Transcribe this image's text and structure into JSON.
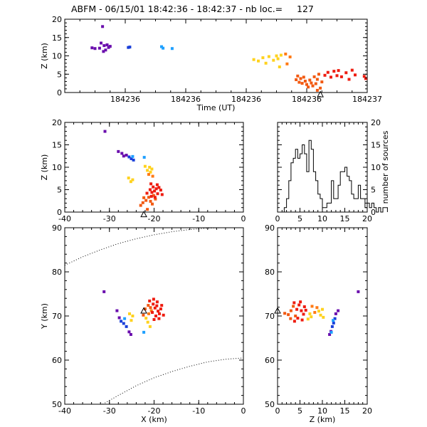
{
  "title": "ABFM - 06/15/01 18:42:36 - 18:42:37 - nb loc.=     127",
  "colors": {
    "violet": "#6a0dad",
    "blue": "#1a3fd9",
    "lightblue": "#1ea0ff",
    "yellow": "#ffd21e",
    "orange": "#ff7a14",
    "darkorange": "#f25a12",
    "red": "#ee1c10"
  },
  "chart_data": [
    {
      "type": "scatter",
      "panel": "time-height",
      "xlabel": "Time (UT)",
      "ylabel": "Z (km)",
      "xlim": [
        0,
        1
      ],
      "ylim": [
        0,
        20
      ],
      "xtick_values": [
        0.2,
        0.4,
        0.6,
        0.8,
        1.0
      ],
      "xtick_labels": [
        "184236",
        "184236",
        "184236",
        "184236",
        "184237"
      ],
      "yticks": [
        0,
        5,
        10,
        15,
        20
      ],
      "grid": false,
      "points": [
        {
          "x": 0.125,
          "y": 18,
          "c": "violet"
        },
        {
          "x": 0.09,
          "y": 12.2,
          "c": "violet"
        },
        {
          "x": 0.1,
          "y": 12,
          "c": "violet"
        },
        {
          "x": 0.115,
          "y": 12.1,
          "c": "violet"
        },
        {
          "x": 0.12,
          "y": 13.5,
          "c": "violet"
        },
        {
          "x": 0.13,
          "y": 12.8,
          "c": "violet"
        },
        {
          "x": 0.135,
          "y": 11.6,
          "c": "violet"
        },
        {
          "x": 0.14,
          "y": 13,
          "c": "violet"
        },
        {
          "x": 0.145,
          "y": 12.3,
          "c": "violet"
        },
        {
          "x": 0.15,
          "y": 12.6,
          "c": "violet"
        },
        {
          "x": 0.128,
          "y": 11.2,
          "c": "violet"
        },
        {
          "x": 0.21,
          "y": 12.3,
          "c": "blue"
        },
        {
          "x": 0.215,
          "y": 12.4,
          "c": "blue"
        },
        {
          "x": 0.32,
          "y": 12.5,
          "c": "lightblue"
        },
        {
          "x": 0.325,
          "y": 12.1,
          "c": "lightblue"
        },
        {
          "x": 0.355,
          "y": 12,
          "c": "lightblue"
        },
        {
          "x": 0.625,
          "y": 9,
          "c": "yellow"
        },
        {
          "x": 0.64,
          "y": 8.6,
          "c": "yellow"
        },
        {
          "x": 0.655,
          "y": 9.5,
          "c": "yellow"
        },
        {
          "x": 0.665,
          "y": 8,
          "c": "yellow"
        },
        {
          "x": 0.675,
          "y": 9.8,
          "c": "yellow"
        },
        {
          "x": 0.69,
          "y": 8.8,
          "c": "yellow"
        },
        {
          "x": 0.7,
          "y": 10,
          "c": "yellow"
        },
        {
          "x": 0.705,
          "y": 9.2,
          "c": "yellow"
        },
        {
          "x": 0.71,
          "y": 7,
          "c": "yellow"
        },
        {
          "x": 0.715,
          "y": 10.2,
          "c": "yellow"
        },
        {
          "x": 0.73,
          "y": 10.5,
          "c": "orange"
        },
        {
          "x": 0.745,
          "y": 9.7,
          "c": "orange"
        },
        {
          "x": 0.735,
          "y": 7.8,
          "c": "orange"
        },
        {
          "x": 0.765,
          "y": 3.5,
          "c": "darkorange"
        },
        {
          "x": 0.77,
          "y": 4.5,
          "c": "darkorange"
        },
        {
          "x": 0.775,
          "y": 2.8,
          "c": "darkorange"
        },
        {
          "x": 0.78,
          "y": 3.8,
          "c": "darkorange"
        },
        {
          "x": 0.785,
          "y": 2.5,
          "c": "darkorange"
        },
        {
          "x": 0.79,
          "y": 4.2,
          "c": "darkorange"
        },
        {
          "x": 0.795,
          "y": 3.1,
          "c": "darkorange"
        },
        {
          "x": 0.8,
          "y": 2.2,
          "c": "darkorange"
        },
        {
          "x": 0.805,
          "y": 1.5,
          "c": "darkorange"
        },
        {
          "x": 0.81,
          "y": 3.4,
          "c": "darkorange"
        },
        {
          "x": 0.815,
          "y": 2.6,
          "c": "darkorange"
        },
        {
          "x": 0.82,
          "y": 1.8,
          "c": "darkorange"
        },
        {
          "x": 0.825,
          "y": 4.3,
          "c": "darkorange"
        },
        {
          "x": 0.83,
          "y": 2.4,
          "c": "darkorange"
        },
        {
          "x": 0.835,
          "y": 3.6,
          "c": "darkorange"
        },
        {
          "x": 0.84,
          "y": 5,
          "c": "darkorange"
        },
        {
          "x": 0.845,
          "y": 1.2,
          "c": "darkorange"
        },
        {
          "x": 0.85,
          "y": 2.9,
          "c": "darkorange"
        },
        {
          "x": 0.835,
          "y": 0.6,
          "c": "darkorange"
        },
        {
          "x": 0.86,
          "y": 4.7,
          "c": "red"
        },
        {
          "x": 0.87,
          "y": 5.5,
          "c": "red"
        },
        {
          "x": 0.88,
          "y": 4.2,
          "c": "red"
        },
        {
          "x": 0.89,
          "y": 5.8,
          "c": "red"
        },
        {
          "x": 0.9,
          "y": 4.6,
          "c": "red"
        },
        {
          "x": 0.905,
          "y": 6,
          "c": "red"
        },
        {
          "x": 0.915,
          "y": 4.3,
          "c": "red"
        },
        {
          "x": 0.93,
          "y": 5.4,
          "c": "red"
        },
        {
          "x": 0.94,
          "y": 3.6,
          "c": "red"
        },
        {
          "x": 0.95,
          "y": 6.1,
          "c": "red"
        },
        {
          "x": 0.96,
          "y": 4.8,
          "c": "red"
        },
        {
          "x": 0.99,
          "y": 4.4,
          "c": "red"
        },
        {
          "x": 0.995,
          "y": 3.8,
          "c": "red"
        }
      ],
      "marker": {
        "x": 0.845,
        "y": -0.5
      }
    },
    {
      "type": "scatter",
      "panel": "x-height",
      "ylabel": "Z (km)",
      "xlim": [
        -40,
        0
      ],
      "ylim": [
        0,
        20
      ],
      "xticks": [
        -40,
        -30,
        -20,
        -10,
        0
      ],
      "yticks": [
        0,
        5,
        10,
        15,
        20
      ],
      "grid": false,
      "points": [
        {
          "x": -31,
          "y": 18,
          "c": "violet"
        },
        {
          "x": -28,
          "y": 13.5,
          "c": "violet"
        },
        {
          "x": -27.2,
          "y": 13.1,
          "c": "violet"
        },
        {
          "x": -26.8,
          "y": 12.5,
          "c": "violet"
        },
        {
          "x": -26.2,
          "y": 12.7,
          "c": "violet"
        },
        {
          "x": -25.6,
          "y": 12.3,
          "c": "blue"
        },
        {
          "x": -25.1,
          "y": 11.9,
          "c": "blue"
        },
        {
          "x": -24.6,
          "y": 11.6,
          "c": "blue"
        },
        {
          "x": -24.8,
          "y": 12.4,
          "c": "lightblue"
        },
        {
          "x": -22.2,
          "y": 12.2,
          "c": "lightblue"
        },
        {
          "x": -25.7,
          "y": 7.6,
          "c": "yellow"
        },
        {
          "x": -25.2,
          "y": 6.8,
          "c": "yellow"
        },
        {
          "x": -24.8,
          "y": 7.2,
          "c": "yellow"
        },
        {
          "x": -22,
          "y": 10.2,
          "c": "yellow"
        },
        {
          "x": -21.5,
          "y": 9.3,
          "c": "yellow"
        },
        {
          "x": -21,
          "y": 10,
          "c": "yellow"
        },
        {
          "x": -20.8,
          "y": 8.9,
          "c": "yellow"
        },
        {
          "x": -20.5,
          "y": 9.6,
          "c": "yellow"
        },
        {
          "x": -21.2,
          "y": 8.4,
          "c": "orange"
        },
        {
          "x": -20.3,
          "y": 8,
          "c": "orange"
        },
        {
          "x": -23,
          "y": 1.5,
          "c": "darkorange"
        },
        {
          "x": -22.5,
          "y": 2.1,
          "c": "darkorange"
        },
        {
          "x": -21.8,
          "y": 2.6,
          "c": "darkorange"
        },
        {
          "x": -21.2,
          "y": 3.3,
          "c": "darkorange"
        },
        {
          "x": -20.8,
          "y": 2.4,
          "c": "darkorange"
        },
        {
          "x": -20.4,
          "y": 1.8,
          "c": "darkorange"
        },
        {
          "x": -20.1,
          "y": 3.7,
          "c": "darkorange"
        },
        {
          "x": -19.7,
          "y": 2.9,
          "c": "darkorange"
        },
        {
          "x": -21.5,
          "y": 0.6,
          "c": "darkorange"
        },
        {
          "x": -22.3,
          "y": 3.2,
          "c": "darkorange"
        },
        {
          "x": -21.6,
          "y": 4.2,
          "c": "red"
        },
        {
          "x": -20.9,
          "y": 5,
          "c": "red"
        },
        {
          "x": -20.5,
          "y": 4.4,
          "c": "red"
        },
        {
          "x": -20.2,
          "y": 5.6,
          "c": "red"
        },
        {
          "x": -19.9,
          "y": 4.7,
          "c": "red"
        },
        {
          "x": -19.5,
          "y": 5.2,
          "c": "red"
        },
        {
          "x": -19.2,
          "y": 4.1,
          "c": "red"
        },
        {
          "x": -18.9,
          "y": 5.5,
          "c": "red"
        },
        {
          "x": -18.5,
          "y": 4.9,
          "c": "red"
        },
        {
          "x": -18.2,
          "y": 3.9,
          "c": "red"
        },
        {
          "x": -19.8,
          "y": 3.3,
          "c": "red"
        },
        {
          "x": -20.6,
          "y": 3.5,
          "c": "red"
        },
        {
          "x": -20.7,
          "y": 6.3,
          "c": "red"
        },
        {
          "x": -19.3,
          "y": 6.1,
          "c": "red"
        }
      ],
      "marker": {
        "x": -22.3,
        "y": -0.5
      }
    },
    {
      "type": "bar",
      "panel": "histogram",
      "y2label": "number of sources",
      "xlim": [
        0,
        20
      ],
      "ylim": [
        0,
        20
      ],
      "xticks": [
        0,
        5,
        10,
        15,
        20
      ],
      "yticks": [
        0,
        5,
        10,
        15,
        20
      ],
      "bin_width": 0.5,
      "bin_start": 1.5,
      "values": [
        1,
        3,
        7,
        11,
        12,
        14,
        12,
        13,
        15,
        13,
        9,
        16,
        14,
        9,
        7,
        4,
        3,
        1,
        1,
        2,
        2,
        7,
        3,
        3,
        6,
        9,
        9,
        10,
        8,
        7,
        4,
        3,
        3,
        6,
        3,
        3,
        1,
        2,
        1,
        2,
        1,
        0,
        1,
        0,
        1,
        1
      ]
    },
    {
      "type": "scatter",
      "panel": "plan-view",
      "xlabel": "X (km)",
      "ylabel": "Y (km)",
      "xlim": [
        -40,
        0
      ],
      "ylim": [
        50,
        90
      ],
      "xticks": [
        -40,
        -30,
        -20,
        -10,
        0
      ],
      "yticks": [
        50,
        60,
        70,
        80,
        90
      ],
      "grid": false,
      "points": [
        {
          "x": -31.2,
          "y": 75.5,
          "c": "violet"
        },
        {
          "x": -28.3,
          "y": 71.2,
          "c": "violet"
        },
        {
          "x": -27.8,
          "y": 69.6,
          "c": "violet"
        },
        {
          "x": -27.4,
          "y": 68.8,
          "c": "blue"
        },
        {
          "x": -26.8,
          "y": 68.3,
          "c": "blue"
        },
        {
          "x": -26.2,
          "y": 67.6,
          "c": "blue"
        },
        {
          "x": -25.6,
          "y": 66.4,
          "c": "violet"
        },
        {
          "x": -25.2,
          "y": 65.8,
          "c": "violet"
        },
        {
          "x": -26.6,
          "y": 69.4,
          "c": "lightblue"
        },
        {
          "x": -22.3,
          "y": 66.3,
          "c": "lightblue"
        },
        {
          "x": -25.5,
          "y": 70.5,
          "c": "yellow"
        },
        {
          "x": -25.1,
          "y": 69,
          "c": "yellow"
        },
        {
          "x": -24.8,
          "y": 70,
          "c": "yellow"
        },
        {
          "x": -21.4,
          "y": 68.6,
          "c": "yellow"
        },
        {
          "x": -21.8,
          "y": 69.5,
          "c": "yellow"
        },
        {
          "x": -20.9,
          "y": 67.6,
          "c": "yellow"
        },
        {
          "x": -21.2,
          "y": 70.5,
          "c": "orange"
        },
        {
          "x": -20.6,
          "y": 71.2,
          "c": "orange"
        },
        {
          "x": -22,
          "y": 71.6,
          "c": "darkorange"
        },
        {
          "x": -21.3,
          "y": 72.4,
          "c": "darkorange"
        },
        {
          "x": -20.8,
          "y": 71.9,
          "c": "darkorange"
        },
        {
          "x": -22.4,
          "y": 70.2,
          "c": "darkorange"
        },
        {
          "x": -20.2,
          "y": 72.7,
          "c": "red"
        },
        {
          "x": -19.8,
          "y": 71.8,
          "c": "red"
        },
        {
          "x": -19.4,
          "y": 72.3,
          "c": "red"
        },
        {
          "x": -19.1,
          "y": 71.1,
          "c": "red"
        },
        {
          "x": -18.8,
          "y": 70.5,
          "c": "red"
        },
        {
          "x": -18.5,
          "y": 71.6,
          "c": "red"
        },
        {
          "x": -20.4,
          "y": 70.8,
          "c": "red"
        },
        {
          "x": -19.6,
          "y": 70,
          "c": "red"
        },
        {
          "x": -18.9,
          "y": 69.4,
          "c": "red"
        },
        {
          "x": -20,
          "y": 69.2,
          "c": "red"
        },
        {
          "x": -19.3,
          "y": 73.2,
          "c": "red"
        },
        {
          "x": -18.3,
          "y": 72.4,
          "c": "red"
        },
        {
          "x": -17.9,
          "y": 70.2,
          "c": "red"
        },
        {
          "x": -21,
          "y": 73.4,
          "c": "red"
        },
        {
          "x": -20.1,
          "y": 73.8,
          "c": "red"
        }
      ],
      "marker": {
        "x": -22.3,
        "y": 71.2
      },
      "dotted_curves": [
        [
          [
            -40,
            81.5
          ],
          [
            -36,
            83.4
          ],
          [
            -32,
            85
          ],
          [
            -28,
            86.4
          ],
          [
            -24,
            87.5
          ],
          [
            -20,
            88.4
          ],
          [
            -16,
            89.1
          ],
          [
            -12,
            89.6
          ],
          [
            -8,
            89.9
          ],
          [
            -5,
            90
          ]
        ],
        [
          [
            -31.5,
            50
          ],
          [
            -28,
            52
          ],
          [
            -24,
            54.2
          ],
          [
            -20,
            56
          ],
          [
            -16,
            57.4
          ],
          [
            -12,
            58.6
          ],
          [
            -8,
            59.6
          ],
          [
            -4,
            60.2
          ],
          [
            0,
            60.5
          ]
        ]
      ]
    },
    {
      "type": "scatter",
      "panel": "z-plan",
      "xlabel": "Z (km)",
      "xlim": [
        0,
        20
      ],
      "ylim": [
        50,
        90
      ],
      "xticks": [
        0,
        5,
        10,
        15,
        20
      ],
      "yticks": [
        50,
        60,
        70,
        80,
        90
      ],
      "grid": false,
      "points": [
        {
          "x": 18,
          "y": 75.5,
          "c": "violet"
        },
        {
          "x": 13.5,
          "y": 71.2,
          "c": "violet"
        },
        {
          "x": 13,
          "y": 70.5,
          "c": "violet"
        },
        {
          "x": 12.8,
          "y": 69.4,
          "c": "blue"
        },
        {
          "x": 12.5,
          "y": 68.4,
          "c": "blue"
        },
        {
          "x": 12.2,
          "y": 67.6,
          "c": "blue"
        },
        {
          "x": 11.9,
          "y": 66.5,
          "c": "violet"
        },
        {
          "x": 11.6,
          "y": 65.8,
          "c": "violet"
        },
        {
          "x": 12,
          "y": 66.3,
          "c": "lightblue"
        },
        {
          "x": 12.4,
          "y": 69,
          "c": "lightblue"
        },
        {
          "x": 7.2,
          "y": 70.5,
          "c": "yellow"
        },
        {
          "x": 6.8,
          "y": 69.3,
          "c": "yellow"
        },
        {
          "x": 7.5,
          "y": 69.8,
          "c": "yellow"
        },
        {
          "x": 9.2,
          "y": 71.1,
          "c": "yellow"
        },
        {
          "x": 9.6,
          "y": 70.2,
          "c": "yellow"
        },
        {
          "x": 10,
          "y": 71.5,
          "c": "yellow"
        },
        {
          "x": 10.2,
          "y": 69.7,
          "c": "yellow"
        },
        {
          "x": 8.3,
          "y": 70.8,
          "c": "orange"
        },
        {
          "x": 8.8,
          "y": 71.9,
          "c": "orange"
        },
        {
          "x": 7.7,
          "y": 72.2,
          "c": "orange"
        },
        {
          "x": 3,
          "y": 71.2,
          "c": "darkorange"
        },
        {
          "x": 3.5,
          "y": 72.2,
          "c": "darkorange"
        },
        {
          "x": 2.4,
          "y": 70.3,
          "c": "darkorange"
        },
        {
          "x": 1.6,
          "y": 70.6,
          "c": "darkorange"
        },
        {
          "x": 4,
          "y": 70,
          "c": "darkorange"
        },
        {
          "x": 2.9,
          "y": 69.4,
          "c": "darkorange"
        },
        {
          "x": 4.3,
          "y": 71.5,
          "c": "red"
        },
        {
          "x": 4.8,
          "y": 72.5,
          "c": "red"
        },
        {
          "x": 5.3,
          "y": 71.2,
          "c": "red"
        },
        {
          "x": 5.8,
          "y": 70.4,
          "c": "red"
        },
        {
          "x": 4.5,
          "y": 69.5,
          "c": "red"
        },
        {
          "x": 5.1,
          "y": 73.2,
          "c": "red"
        },
        {
          "x": 6,
          "y": 72.1,
          "c": "red"
        },
        {
          "x": 3.8,
          "y": 68.8,
          "c": "red"
        },
        {
          "x": 5.5,
          "y": 69.1,
          "c": "red"
        },
        {
          "x": 6.3,
          "y": 71.3,
          "c": "red"
        },
        {
          "x": 3.7,
          "y": 73,
          "c": "red"
        }
      ],
      "marker": {
        "x": 0,
        "y": 71.2
      }
    }
  ]
}
